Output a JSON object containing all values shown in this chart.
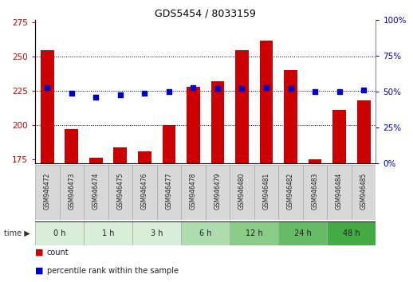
{
  "title": "GDS5454 / 8033159",
  "samples": [
    "GSM946472",
    "GSM946473",
    "GSM946474",
    "GSM946475",
    "GSM946476",
    "GSM946477",
    "GSM946478",
    "GSM946479",
    "GSM946480",
    "GSM946481",
    "GSM946482",
    "GSM946483",
    "GSM946484",
    "GSM946485"
  ],
  "counts": [
    255,
    197,
    176,
    184,
    181,
    200,
    228,
    232,
    255,
    262,
    240,
    175,
    211,
    218
  ],
  "percentile": [
    53,
    49,
    46,
    48,
    49,
    50,
    53,
    52,
    52,
    53,
    52,
    50,
    50,
    51
  ],
  "time_groups": [
    {
      "label": "0 h",
      "start": 0,
      "end": 2,
      "color": "#d8eed8"
    },
    {
      "label": "1 h",
      "start": 2,
      "end": 4,
      "color": "#d8eed8"
    },
    {
      "label": "3 h",
      "start": 4,
      "end": 6,
      "color": "#d8eed8"
    },
    {
      "label": "6 h",
      "start": 6,
      "end": 8,
      "color": "#b0ddb0"
    },
    {
      "label": "12 h",
      "start": 8,
      "end": 10,
      "color": "#88cc88"
    },
    {
      "label": "24 h",
      "start": 10,
      "end": 12,
      "color": "#66bb66"
    },
    {
      "label": "48 h",
      "start": 12,
      "end": 14,
      "color": "#44aa44"
    }
  ],
  "ylim_left": [
    172,
    277
  ],
  "ylim_right": [
    0,
    100
  ],
  "yticks_left": [
    175,
    200,
    225,
    250,
    275
  ],
  "yticks_right": [
    0,
    25,
    50,
    75,
    100
  ],
  "bar_color": "#cc0000",
  "dot_color": "#0000cc",
  "bar_width": 0.55,
  "bg_color": "#ffffff",
  "grid_color": "#000000",
  "title_color": "#000000",
  "left_tick_color": "#cc0000",
  "right_tick_color": "#0000cc",
  "sample_box_color": "#d8d8d8",
  "sample_box_edge": "#aaaaaa",
  "grid_yticks": [
    250,
    225,
    200
  ]
}
